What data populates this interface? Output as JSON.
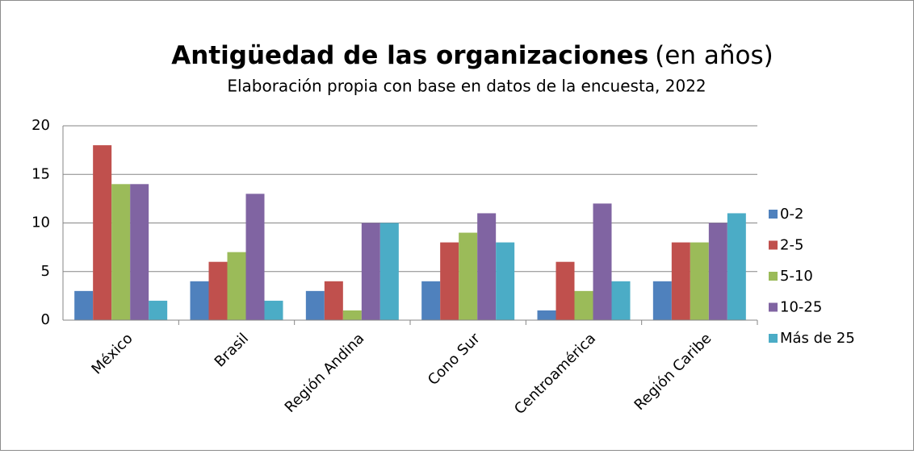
{
  "chart_data": {
    "type": "bar",
    "title": [
      "Antigüedad de las organizaciones",
      "(en años)"
    ],
    "subtitle": "Elaboración propia con base en datos de la encuesta, 2022",
    "categories": [
      "México",
      "Brasil",
      "Región Andina",
      "Cono Sur",
      "Centroamérica",
      "Región Caribe"
    ],
    "series": [
      {
        "name": "0-2",
        "color": "#4f81bd",
        "values": [
          3,
          4,
          3,
          4,
          1,
          4
        ]
      },
      {
        "name": "2-5",
        "color": "#c0504d",
        "values": [
          18,
          6,
          4,
          8,
          6,
          8
        ]
      },
      {
        "name": "5-10",
        "color": "#9bbb59",
        "values": [
          14,
          7,
          1,
          9,
          3,
          8
        ]
      },
      {
        "name": "10-25",
        "color": "#8064a2",
        "values": [
          14,
          13,
          10,
          11,
          12,
          10
        ]
      },
      {
        "name": "Más de 25",
        "color": "#4bacc6",
        "values": [
          2,
          2,
          10,
          8,
          4,
          11
        ]
      }
    ],
    "ylim": [
      0,
      20
    ],
    "yticks": [
      0,
      5,
      10,
      15,
      20
    ],
    "grid": true,
    "legend": "right"
  }
}
